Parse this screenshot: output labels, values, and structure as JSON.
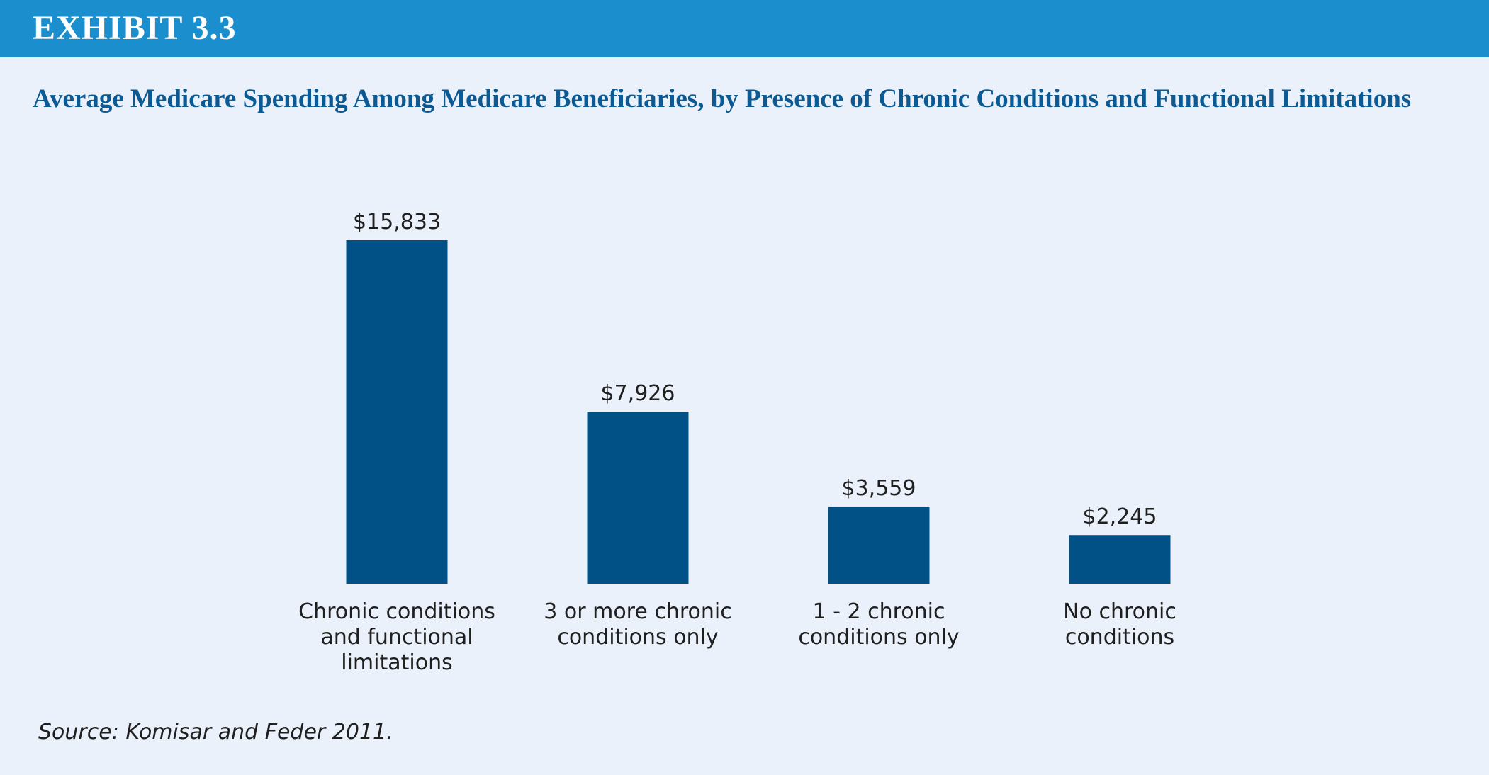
{
  "header": {
    "exhibit": "EXHIBIT 3.3"
  },
  "colors": {
    "header_bar": "#1b8fce",
    "background": "#eaf1fa",
    "title": "#0b5a94",
    "bar": "#015187",
    "text": "#1f1f1f"
  },
  "chart_data": {
    "type": "bar",
    "title": "Average Medicare Spending Among Medicare Beneficiaries, by Presence of Chronic Conditions and Functional Limitations",
    "xlabel": "",
    "ylabel": "",
    "ylim": [
      0,
      15833
    ],
    "grid": false,
    "legend": "none",
    "categories": [
      [
        "Chronic conditions",
        "and functional",
        "limitations"
      ],
      [
        "3 or more chronic",
        "conditions only"
      ],
      [
        "1 - 2 chronic",
        "conditions only"
      ],
      [
        "No chronic",
        "conditions"
      ]
    ],
    "values": [
      15833,
      7926,
      3559,
      2245
    ],
    "value_labels": [
      "$15,833",
      "$7,926",
      "$3,559",
      "$2,245"
    ]
  },
  "source": "Source:  Komisar and Feder 2011."
}
